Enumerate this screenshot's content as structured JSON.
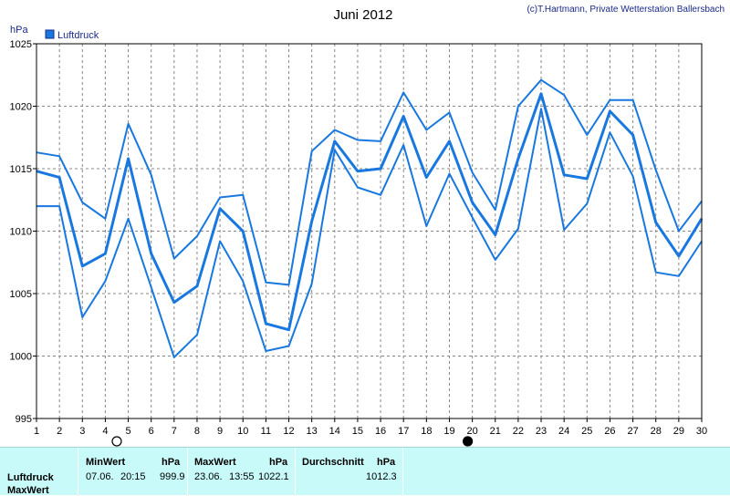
{
  "chart_data": {
    "type": "line",
    "title": "Juni 2012",
    "copyright": "(c)T.Hartmann, Private Wetterstation Ballersbach",
    "ylabel": "hPa",
    "legend": [
      "Luftdruck"
    ],
    "legend_position": "top-left",
    "ylim": [
      995,
      1025
    ],
    "yticks": [
      995,
      1000,
      1005,
      1010,
      1015,
      1020,
      1025
    ],
    "xlim": [
      1,
      30
    ],
    "x": [
      1,
      2,
      3,
      4,
      5,
      6,
      7,
      8,
      9,
      10,
      11,
      12,
      13,
      14,
      15,
      16,
      17,
      18,
      19,
      20,
      21,
      22,
      23,
      24,
      25,
      26,
      27,
      28,
      29,
      30
    ],
    "grid": true,
    "colors": {
      "series": "#1878e0",
      "grid": "#888888",
      "legend_box": "#1878e0"
    },
    "series": [
      {
        "name": "Luftdruck",
        "role": "mean",
        "values": [
          1014.8,
          1014.3,
          1007.2,
          1008.2,
          1015.8,
          1008.2,
          1004.3,
          1005.6,
          1011.8,
          1010.0,
          1002.6,
          1002.1,
          1010.8,
          1017.2,
          1014.8,
          1015.0,
          1019.2,
          1014.3,
          1017.2,
          1012.3,
          1009.7,
          1015.8,
          1021.0,
          1014.5,
          1014.2,
          1019.6,
          1017.7,
          1010.7,
          1008.0,
          1011.0
        ]
      },
      {
        "role": "max",
        "values": [
          1016.3,
          1016.0,
          1012.3,
          1011.0,
          1018.6,
          1014.5,
          1007.8,
          1009.6,
          1012.7,
          1012.9,
          1005.9,
          1005.7,
          1016.4,
          1018.1,
          1017.3,
          1017.2,
          1021.1,
          1018.1,
          1019.5,
          1014.7,
          1011.7,
          1020.0,
          1022.1,
          1020.9,
          1017.7,
          1020.5,
          1020.5,
          1014.9,
          1010.0,
          1012.4
        ]
      },
      {
        "role": "min",
        "values": [
          1012.0,
          1012.0,
          1003.1,
          1006.0,
          1011.0,
          1005.5,
          999.9,
          1001.7,
          1009.2,
          1006.0,
          1000.4,
          1000.8,
          1005.8,
          1016.5,
          1013.5,
          1012.9,
          1016.9,
          1010.4,
          1014.6,
          1011.1,
          1007.7,
          1010.2,
          1019.8,
          1010.1,
          1012.2,
          1017.9,
          1014.4,
          1006.7,
          1006.4,
          1009.2
        ]
      }
    ],
    "moon_phases": [
      {
        "x": 4.5,
        "phase": "full"
      },
      {
        "x": 19.8,
        "phase": "new"
      }
    ]
  },
  "stats": {
    "row_labels": [
      "Luftdruck",
      "MaxWert"
    ],
    "min": {
      "label": "MinWert",
      "unit": "hPa",
      "date": "07.06.",
      "time": "20:15",
      "value": "999.9"
    },
    "max": {
      "label": "MaxWert",
      "unit": "hPa",
      "date": "23.06.",
      "time": "13:55",
      "value": "1022.1"
    },
    "avg": {
      "label": "Durchschnitt",
      "unit": "hPa",
      "value": "1012.3"
    }
  }
}
